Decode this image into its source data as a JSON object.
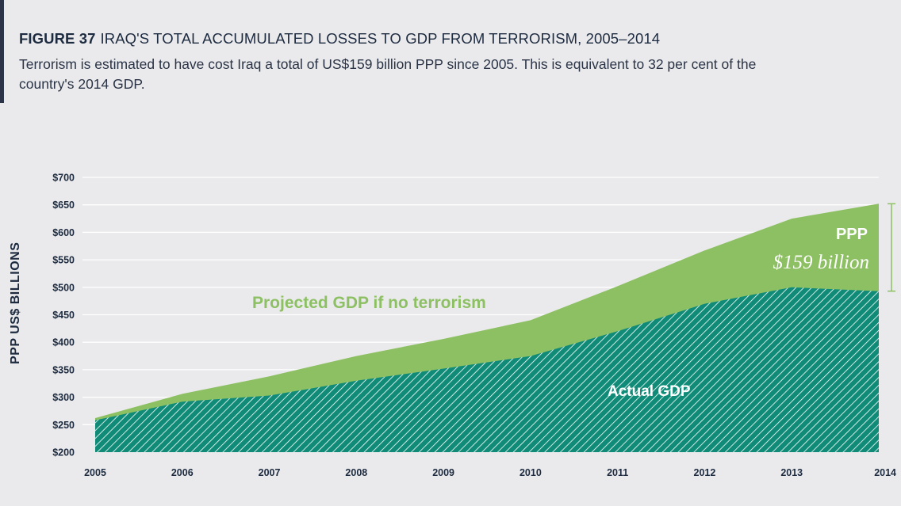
{
  "figure": {
    "number": "FIGURE 37",
    "title": "IRAQ'S TOTAL ACCUMULATED LOSSES TO GDP FROM TERRORISM, 2005–2014",
    "subtitle": "Terrorism is estimated to have cost Iraq a total of US$159 billion PPP since 2005. This is equivalent to 32 per cent of the country's 2014 GDP."
  },
  "chart_data": {
    "type": "area",
    "title": "IRAQ'S TOTAL ACCUMULATED LOSSES TO GDP FROM TERRORISM, 2005–2014",
    "xlabel": "",
    "ylabel": "PPP US$ BILLIONS",
    "x": [
      "2005",
      "2006",
      "2007",
      "2008",
      "2009",
      "2010",
      "2011",
      "2012",
      "2013",
      "2014"
    ],
    "ylim": [
      200,
      700
    ],
    "yticks": [
      "$200",
      "$250",
      "$300",
      "$350",
      "$400",
      "$450",
      "$500",
      "$550",
      "$600",
      "$650",
      "$700"
    ],
    "grid": true,
    "series": [
      {
        "name": "Projected GDP if no terrorism",
        "values": [
          262,
          306,
          338,
          375,
          406,
          440,
          502,
          567,
          625,
          652
        ],
        "color": "#8dc063"
      },
      {
        "name": "Actual GDP",
        "values": [
          258,
          292,
          303,
          330,
          352,
          375,
          420,
          470,
          500,
          493
        ],
        "color": "#0f8b78"
      }
    ],
    "annotations": {
      "gap_label": "PPP",
      "gap_value": "$159 billion"
    }
  }
}
